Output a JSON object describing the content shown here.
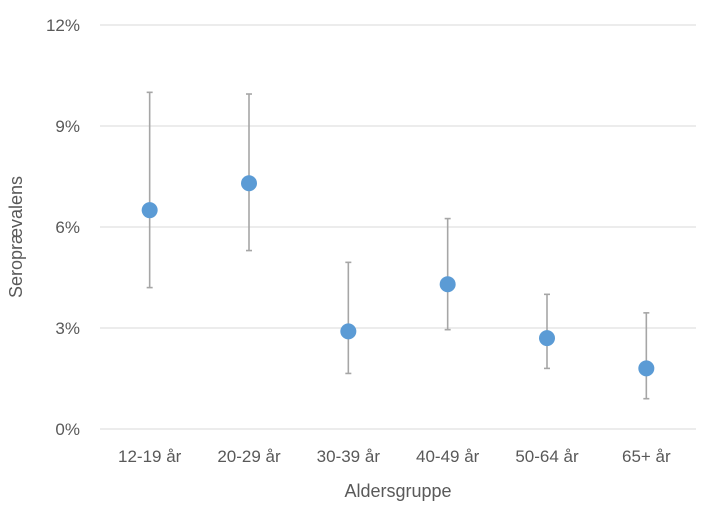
{
  "chart_data": {
    "type": "scatter",
    "title": "",
    "xlabel": "Aldersgruppe",
    "ylabel": "Seroprævalens",
    "categories": [
      "12-19 år",
      "20-29 år",
      "30-39 år",
      "40-49 år",
      "50-64 år",
      "65+ år"
    ],
    "y_ticks": [
      "0%",
      "3%",
      "6%",
      "9%",
      "12%"
    ],
    "ylim": [
      0,
      12
    ],
    "y_tick_values": [
      0,
      3,
      6,
      9,
      12
    ],
    "grid": true,
    "legend": "none",
    "series": [
      {
        "values": [
          6.5,
          7.3,
          2.9,
          4.3,
          2.7,
          1.8
        ],
        "lower": [
          4.2,
          5.3,
          1.65,
          2.95,
          1.8,
          0.9
        ],
        "upper": [
          10.0,
          9.95,
          4.95,
          6.25,
          4.0,
          3.45
        ]
      }
    ],
    "colors": {
      "point": "#5b9bd5",
      "error_bar": "#a6a6a6",
      "grid": "#d9d9d9",
      "text": "#595959"
    }
  }
}
